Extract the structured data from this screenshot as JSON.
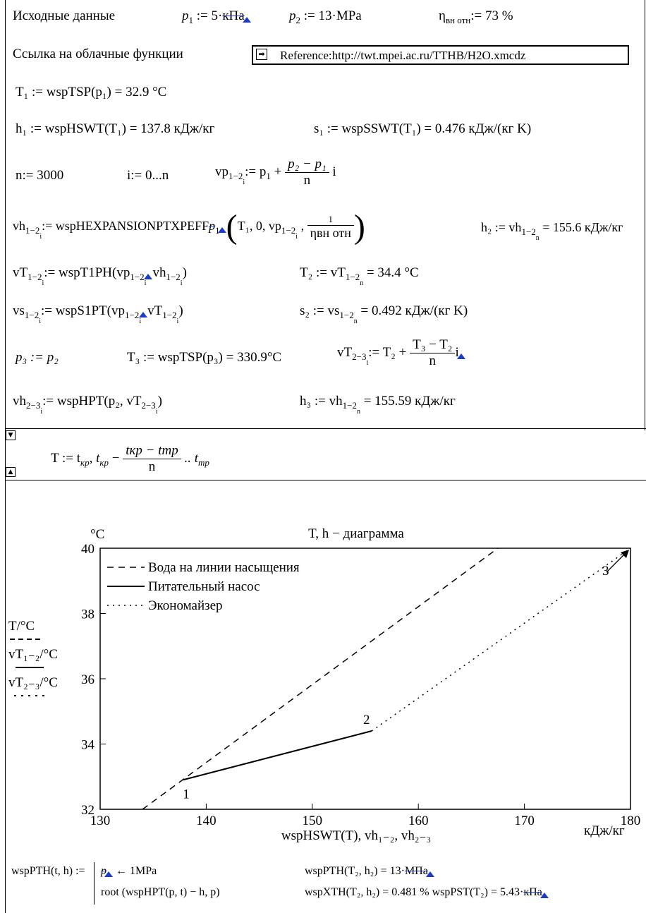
{
  "inputs": {
    "label": "Исходные данные",
    "p1_name": "p",
    "p1_sub": "1",
    "p1_assign": " := 5·",
    "p1_unit": "кПа",
    "p2_name": "p",
    "p2_sub": "2",
    "p2_assign": " := 13·MPa",
    "eta_name": "η",
    "eta_sub": "вн отн",
    "eta_assign": ":= 73 %"
  },
  "reference": {
    "label": "Ссылка на облачные функции",
    "value": "Reference:http://twt.mpei.ac.ru/TTHB/H2O.xmcdz"
  },
  "lines": {
    "t1": "T₁ := wspTSP(p₁) = 32.9 °C",
    "h1": "h₁ := wspHSWT(T₁) = 137.8 кДж/кг",
    "s1": "s₁ := wspSSWT(T₁) = 0.476 кДж/(кг K)",
    "n": "n:= 3000",
    "i": "i:= 0...n",
    "vp_left": "vp",
    "vp_sub": "1−2",
    "vp_subi": "i",
    "vp_mid": ":= p",
    "vp_p1sub": "1",
    "vp_plus": " + ",
    "vp_num": "p₂ − p₁",
    "vp_den": "n",
    "vp_i": " i",
    "vh_left": "vh",
    "vh_sub": "1−2",
    "vh_subi": "i",
    "vh_func": ":= wspHEXPANSIONPTXPEFF",
    "vh_strike": "p",
    "vh_args": "T₁, 0, vp",
    "vh_args_sub": "1−2",
    "vh_args_subi": "i",
    "vh_args_comma": " , ",
    "vh_frac_num": "1",
    "vh_frac_den": "ηвн отн",
    "vh_h2": "h₂ := vh",
    "vh_h2_sub": "1−2",
    "vh_h2_subn": "n",
    "vh_h2_val": " = 155.6 кДж/кг",
    "vt_left": "vT",
    "vt_sub": "1−2",
    "vt_subi": "i",
    "vt_func": ":= wspT1PH(vp",
    "vt_fsub": "1−2",
    "vt_fsubi": "i",
    "vt_mid": "vh",
    "vt_msub": "1−2",
    "vt_msubi": "i",
    "vt_close": ")",
    "t2": "T₂ := vT",
    "t2_sub": "1−2",
    "t2_subn": "n",
    "t2_val": " = 34.4 °C",
    "vs_left": "vs",
    "vs_sub": "1−2",
    "vs_subi": "i",
    "vs_func": ":= wspS1PT(vp",
    "vs_fsub": "1−2",
    "vs_fsubi": "i",
    "vs_mid": "vT",
    "vs_msub": "1−2",
    "vs_msubi": "i",
    "vs_close": ")",
    "s2": "s₂ := vs",
    "s2_sub": "1−2",
    "s2_subn": "n",
    "s2_val": " = 0.492 кДж/(кг K)",
    "p3": "p₃ := p₂",
    "t3": "T₃ := wspTSP(p₃) = 330.9°C",
    "vt23_left": "vT",
    "vt23_sub": "2−3",
    "vt23_subi": "i",
    "vt23_mid": ":= T₂ + ",
    "vt23_num": "T₃ − T₂",
    "vt23_den": "n",
    "vt23_i": "i",
    "vh23_left": "vh",
    "vh23_sub": "2−3",
    "vh23_subi": "i",
    "vh23_func": ":= wspHPT(p₂, vT",
    "vh23_fsub": "2−3",
    "vh23_fsubi": "i",
    "vh23_close": ")",
    "h3": "h₃ := vh",
    "h3_sub": "1−2",
    "h3_subn": "n",
    "h3_val": " = 155.59 кДж/кг"
  },
  "range_def": {
    "left": "T := t",
    "kp": "кр",
    "comma": ", t",
    "kp2": "кр",
    "minus": " − ",
    "num": "tкр − tтр",
    "den": "n",
    "dots": " .. t",
    "tp": "тр"
  },
  "chart_data": {
    "type": "line",
    "title": "T, h − диаграмма",
    "yunit": "°C",
    "xlabel": "wspHSWT(T), vh₁₋₂, vh₂₋₃",
    "xunit": "кДж/кг",
    "xlim": [
      130,
      180
    ],
    "ylim": [
      32,
      40
    ],
    "xticks": [
      "130",
      "140",
      "150",
      "160",
      "170",
      "180"
    ],
    "yticks": [
      "32",
      "34",
      "36",
      "38",
      "40"
    ],
    "legend": [
      {
        "name": "Вода на линии насыщения",
        "dash": "dashed"
      },
      {
        "name": "Питательный насос",
        "dash": "solid"
      },
      {
        "name": "Экономайзер",
        "dash": "dotted"
      }
    ],
    "trace_labels": [
      "T/°C",
      "vT₁₋₂/°C",
      "vT₂₋₃/°C"
    ],
    "series": [
      {
        "name": "Вода на линии насыщения",
        "x": [
          134.0,
          167.5
        ],
        "y": [
          32.0,
          40.0
        ]
      },
      {
        "name": "Питательный насос",
        "x": [
          137.8,
          155.6
        ],
        "y": [
          32.9,
          34.4
        ]
      },
      {
        "name": "Экономайзер",
        "x": [
          155.6,
          180.0
        ],
        "y": [
          34.4,
          40.0
        ]
      }
    ],
    "points": [
      {
        "label": "1",
        "x": 137.8,
        "y": 32.9
      },
      {
        "label": "2",
        "x": 155.6,
        "y": 34.4
      },
      {
        "label": "3",
        "x": 180.0,
        "y": 40.0
      }
    ]
  },
  "footer": {
    "func_def": "wspPTH(t, h) :=",
    "line1_p": "p",
    "line1_rest": " ← 1MPa",
    "line2": "root (wspHPT(p, t) − h, p)",
    "r1a": "wspPTH(T₂, h₂) = 13·",
    "r1a_unit": "МПа",
    "r2a": "wspXTH(T₂, h₂) = 0.481 % wspPST(T₂) = 5.43·",
    "r2a_unit": "кПа"
  }
}
